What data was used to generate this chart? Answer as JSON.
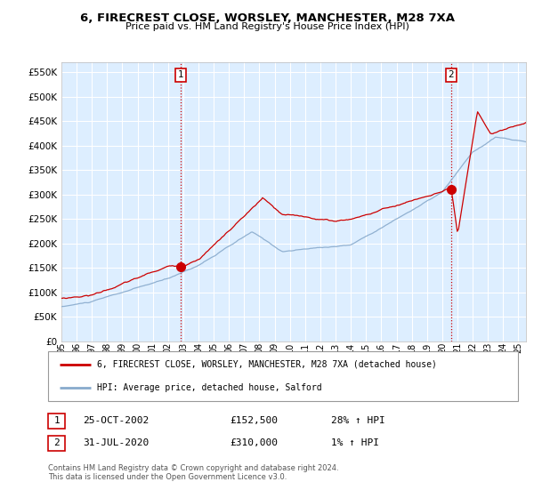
{
  "title": "6, FIRECREST CLOSE, WORSLEY, MANCHESTER, M28 7XA",
  "subtitle": "Price paid vs. HM Land Registry's House Price Index (HPI)",
  "legend_line1": "6, FIRECREST CLOSE, WORSLEY, MANCHESTER, M28 7XA (detached house)",
  "legend_line2": "HPI: Average price, detached house, Salford",
  "table_row1": [
    "1",
    "25-OCT-2002",
    "£152,500",
    "28% ↑ HPI"
  ],
  "table_row2": [
    "2",
    "31-JUL-2020",
    "£310,000",
    "1% ↑ HPI"
  ],
  "footnote": "Contains HM Land Registry data © Crown copyright and database right 2024.\nThis data is licensed under the Open Government Licence v3.0.",
  "red_color": "#cc0000",
  "blue_color": "#88aacc",
  "bg_color": "#ddeeff",
  "grid_color": "#ffffff",
  "ylim_min": 0,
  "ylim_max": 570000,
  "sale1_year": 2002.82,
  "sale1_price": 152500,
  "sale2_year": 2020.58,
  "sale2_price": 310000,
  "xmin": 1995,
  "xmax": 2025.5
}
